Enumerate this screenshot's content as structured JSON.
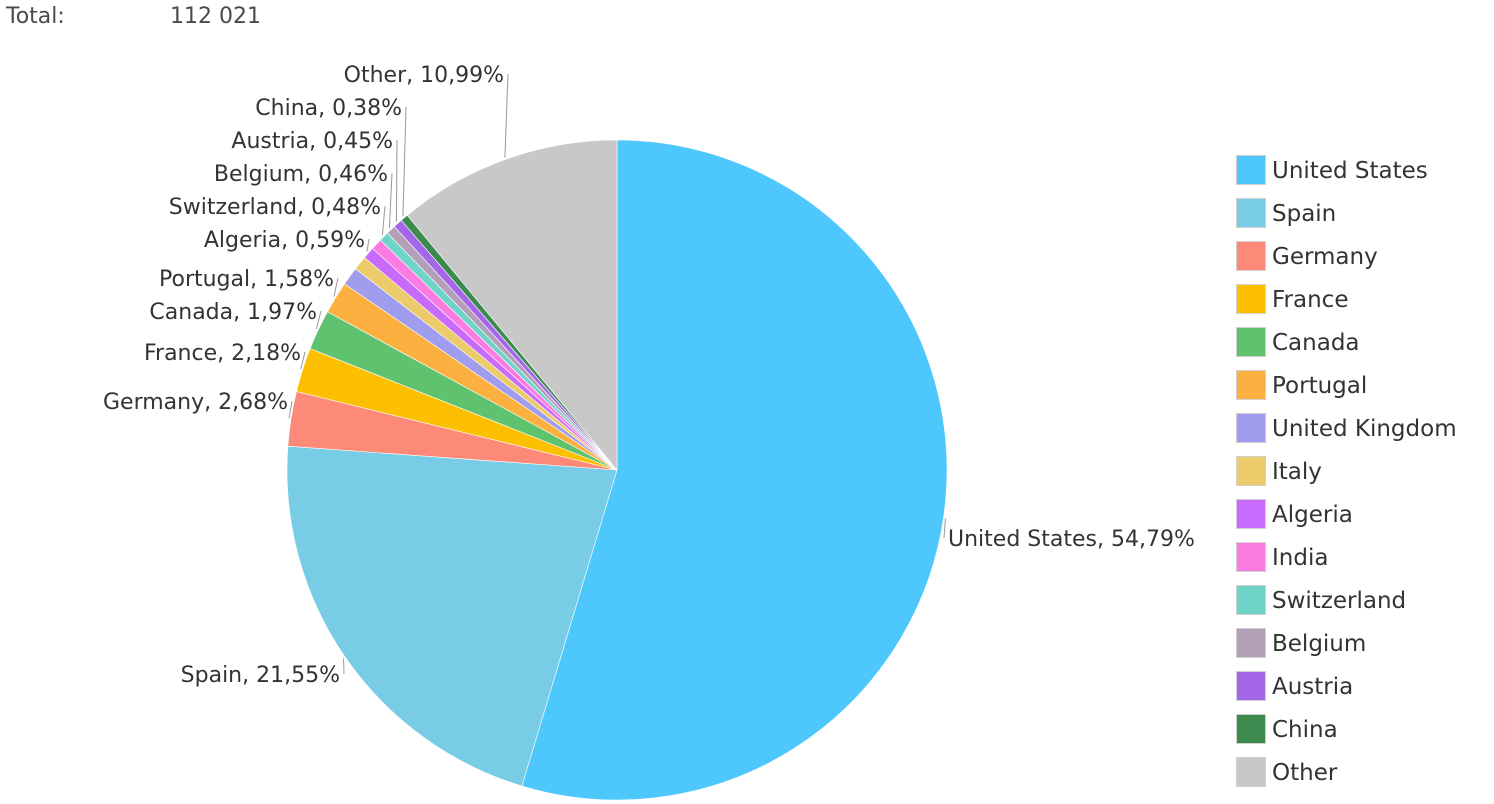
{
  "total": {
    "label": "Total:",
    "value": "112 021"
  },
  "chart_data": {
    "type": "pie",
    "title": "",
    "slices": [
      {
        "name": "United States",
        "value": 54.79,
        "label": "United States, 54,79%",
        "color": "#4dc7fc"
      },
      {
        "name": "Spain",
        "value": 21.55,
        "label": "Spain, 21,55%",
        "color": "#78cce5"
      },
      {
        "name": "Germany",
        "value": 2.68,
        "label": "Germany, 2,68%",
        "color": "#fd8a78"
      },
      {
        "name": "France",
        "value": 2.18,
        "label": "France, 2,18%",
        "color": "#fdc000"
      },
      {
        "name": "Canada",
        "value": 1.97,
        "label": "Canada, 1,97%",
        "color": "#5ec26f"
      },
      {
        "name": "Portugal",
        "value": 1.58,
        "label": "Portugal, 1,58%",
        "color": "#fcb040"
      },
      {
        "name": "United Kingdom",
        "value": 0.9,
        "label": "",
        "color": "#a09cee"
      },
      {
        "name": "Italy",
        "value": 0.7,
        "label": "",
        "color": "#ebcb6a"
      },
      {
        "name": "Algeria",
        "value": 0.59,
        "label": "Algeria, 0,59%",
        "color": "#c86afc"
      },
      {
        "name": "India",
        "value": 0.55,
        "label": "",
        "color": "#fc7be0"
      },
      {
        "name": "Switzerland",
        "value": 0.48,
        "label": "Switzerland, 0,48%",
        "color": "#70d3c8"
      },
      {
        "name": "Belgium",
        "value": 0.46,
        "label": "Belgium, 0,46%",
        "color": "#b39fb8"
      },
      {
        "name": "Austria",
        "value": 0.45,
        "label": "Austria, 0,45%",
        "color": "#a567ea"
      },
      {
        "name": "China",
        "value": 0.38,
        "label": "China, 0,38%",
        "color": "#3d8a4f"
      },
      {
        "name": "Other",
        "value": 10.99,
        "label": "Other, 10,99%",
        "color": "#c8c8c8"
      }
    ],
    "legend": {
      "position": "right",
      "entries": [
        "United States",
        "Spain",
        "Germany",
        "France",
        "Canada",
        "Portugal",
        "United Kingdom",
        "Italy",
        "Algeria",
        "India",
        "Switzerland",
        "Belgium",
        "Austria",
        "China",
        "Other"
      ]
    }
  }
}
